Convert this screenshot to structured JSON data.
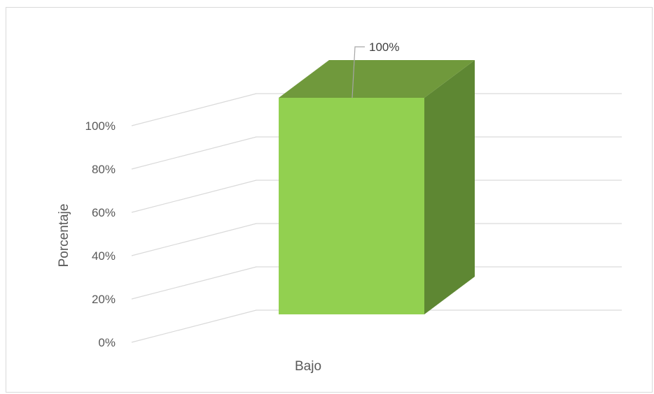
{
  "chart_data": {
    "type": "bar",
    "categories": [
      "Bajo"
    ],
    "values": [
      100
    ],
    "value_labels": [
      "100%"
    ],
    "ylabel": "Porcentaje",
    "ylim": [
      0,
      100
    ],
    "yticks": [
      0,
      20,
      40,
      60,
      80,
      100
    ],
    "ytick_labels": [
      "0%",
      "20%",
      "40%",
      "60%",
      "80%",
      "100%"
    ],
    "grid": true,
    "legend": false,
    "style": "3d-column"
  },
  "colors": {
    "bar_front": "#92d050",
    "bar_top": "#70993c",
    "bar_side": "#5e8733",
    "gridline": "#d9d9d9",
    "text": "#595959",
    "leader": "#a6a6a6"
  }
}
